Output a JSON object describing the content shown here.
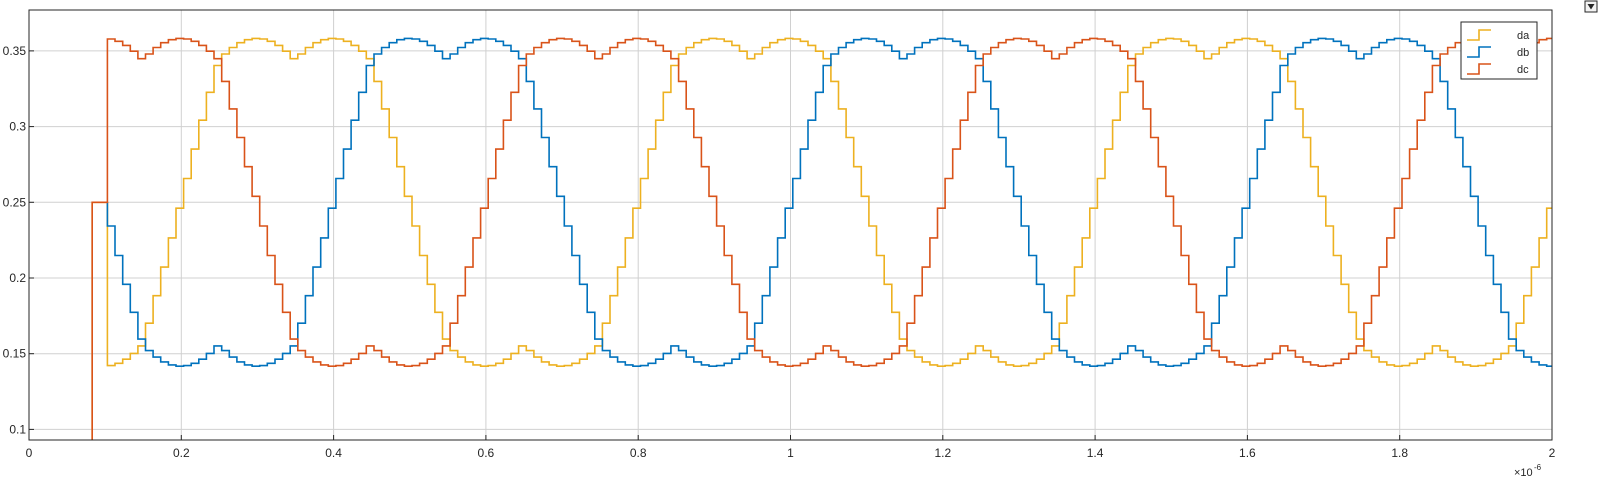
{
  "chart_data": {
    "type": "line",
    "title": "",
    "xlabel": "",
    "ylabel": "",
    "x_exponent_label": "×10",
    "x_exponent_power": "-6",
    "xlim": [
      0,
      2
    ],
    "ylim": [
      0.093,
      0.377
    ],
    "x_ticks": [
      0,
      0.2,
      0.4,
      0.6,
      0.8,
      1,
      1.2,
      1.4,
      1.6,
      1.8,
      2
    ],
    "x_tick_labels": [
      "0",
      "0.2",
      "0.4",
      "0.6",
      "0.8",
      "1",
      "1.2",
      "1.4",
      "1.6",
      "1.8",
      "2"
    ],
    "y_ticks": [
      0.1,
      0.15,
      0.2,
      0.25,
      0.3,
      0.35
    ],
    "y_tick_labels": [
      "0.1",
      "0.15",
      "0.2",
      "0.25",
      "0.3",
      "0.35"
    ],
    "grid": true,
    "legend_position": "top-right",
    "step_style": true,
    "start_segment": {
      "t0": 0.083,
      "t1": 0.103,
      "y_init": 0.25
    },
    "signal": {
      "t_start": 0.103,
      "step": 0.01,
      "t_end": 2.0,
      "period": 0.6,
      "offset": 0.25,
      "amplitude": 0.125,
      "ripple": 0.0125,
      "phase_shift": 0.2
    },
    "series": [
      {
        "name": "da",
        "color": "#EDB120",
        "phase_index": 0
      },
      {
        "name": "db",
        "color": "#0072BD",
        "phase_index": 1
      },
      {
        "name": "dc",
        "color": "#D95319",
        "phase_index": 2
      }
    ]
  },
  "toolbar": {
    "icon": "dock-arrow-icon"
  }
}
